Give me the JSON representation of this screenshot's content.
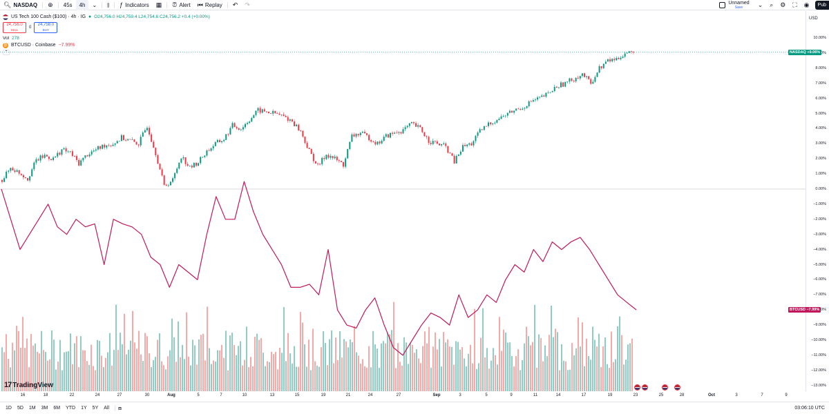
{
  "toolbar": {
    "symbol": "NASDAQ",
    "interval_1": "45s",
    "interval_2": "4h",
    "indicators": "Indicators",
    "alert": "Alert",
    "replay": "Replay",
    "layout_name": "Unnamed",
    "layout_save": "Save",
    "publish": "Pub"
  },
  "legend": {
    "title": "US Tech 100 Cash ($100) · 4h · IG",
    "ohlc": "O24,756.0 H24,759.4 L24,754.6 C24,756.2 +0.4 (+0.00%)",
    "sell_price": "24,756.0",
    "sell_label": "SELL",
    "spread": "0",
    "buy_price": "24,758.0",
    "buy_label": "BUY",
    "vol_label": "Vol",
    "vol_value": "278",
    "compare_symbol": "BTCUSD · Coinbase",
    "compare_change": "−7.99%"
  },
  "price_axis": {
    "currency": "USD",
    "ticks": [
      "10.00%",
      "9.00%",
      "8.00%",
      "7.00%",
      "6.00%",
      "5.00%",
      "4.00%",
      "3.00%",
      "2.00%",
      "1.00%",
      "0.00%",
      "−1.00%",
      "−2.00%",
      "−3.00%",
      "−4.00%",
      "−5.00%",
      "−6.00%",
      "−7.00%",
      "−8.00%",
      "−9.00%",
      "−10.00%",
      "−11.00%",
      "−12.00%",
      "−13.00%"
    ],
    "nasdaq_tag": "NASDAQ +9.06%",
    "btc_tag": "BTCUSD −7.99%"
  },
  "time_axis": [
    {
      "label": "16",
      "bold": false
    },
    {
      "label": "18",
      "bold": false
    },
    {
      "label": "22",
      "bold": false
    },
    {
      "label": "24",
      "bold": false
    },
    {
      "label": "27",
      "bold": false
    },
    {
      "label": "30",
      "bold": false
    },
    {
      "label": "Aug",
      "bold": true
    },
    {
      "label": "5",
      "bold": false
    },
    {
      "label": "7",
      "bold": false
    },
    {
      "label": "10",
      "bold": false
    },
    {
      "label": "13",
      "bold": false
    },
    {
      "label": "15",
      "bold": false
    },
    {
      "label": "19",
      "bold": false
    },
    {
      "label": "21",
      "bold": false
    },
    {
      "label": "24",
      "bold": false
    },
    {
      "label": "27",
      "bold": false
    },
    {
      "label": "Sep",
      "bold": true
    },
    {
      "label": "3",
      "bold": false
    },
    {
      "label": "5",
      "bold": false
    },
    {
      "label": "9",
      "bold": false
    },
    {
      "label": "11",
      "bold": false
    },
    {
      "label": "14",
      "bold": false
    },
    {
      "label": "17",
      "bold": false
    },
    {
      "label": "19",
      "bold": false
    },
    {
      "label": "23",
      "bold": false
    },
    {
      "label": "25",
      "bold": false
    },
    {
      "label": "28",
      "bold": false
    },
    {
      "label": "Oct",
      "bold": true
    },
    {
      "label": "3",
      "bold": false
    },
    {
      "label": "7",
      "bold": false
    },
    {
      "label": "9",
      "bold": false
    }
  ],
  "bottom": {
    "ranges": [
      "1D",
      "5D",
      "1M",
      "3M",
      "6M",
      "YTD",
      "1Y",
      "5Y",
      "All"
    ],
    "utc": "03:06:10 UTC"
  },
  "logo": "TradingView",
  "colors": {
    "up": "#089981",
    "down": "#f23645",
    "btc": "#c2185b",
    "vol_up": "#8fcdc4",
    "vol_down": "#f7a9a7"
  },
  "chart_data": {
    "type": "line",
    "series": [
      {
        "name": "NASDAQ",
        "y": [
          0.6,
          1.4,
          1.1,
          0.7,
          1.9,
          2.2,
          2.0,
          2.6,
          2.4,
          1.7,
          2.3,
          2.6,
          2.9,
          3.0,
          3.4,
          3.2,
          3.0,
          4.2,
          2.4,
          0.2,
          0.6,
          2.2,
          1.4,
          1.8,
          2.5,
          3.0,
          3.3,
          4.2,
          4.0,
          4.6,
          5.2,
          5.1,
          5.0,
          4.8,
          4.5,
          3.8,
          2.5,
          1.5,
          2.3,
          2.0,
          1.6,
          3.5,
          3.7,
          3.4,
          3.0,
          3.5,
          3.7,
          3.9,
          4.3,
          4.0,
          3.2,
          3.0,
          2.8,
          1.8,
          2.8,
          3.0,
          3.8,
          4.3,
          4.6,
          4.9,
          5.2,
          5.4,
          5.8,
          6.0,
          6.3,
          6.8,
          7.0,
          7.3,
          7.6,
          7.0,
          8.0,
          8.5,
          8.6,
          9.0,
          9.06
        ]
      },
      {
        "name": "BTCUSD",
        "y": [
          0,
          -2,
          -4,
          -3,
          -2,
          -1,
          -2.5,
          -3,
          -2,
          -2.5,
          -2.3,
          -5,
          -2,
          -2.3,
          -2.5,
          -3,
          -4.5,
          -5,
          -6.5,
          -5,
          -5.5,
          -6,
          -3,
          -0.5,
          -2,
          -2,
          0.5,
          -1.5,
          -3,
          -4,
          -5,
          -6.5,
          -6.5,
          -6.3,
          -7,
          -4,
          -8,
          -9,
          -9.2,
          -8,
          -7.2,
          -9,
          -10.5,
          -11,
          -10,
          -9,
          -8.2,
          -8.5,
          -9,
          -7,
          -8.5,
          -8,
          -7,
          -7.5,
          -6,
          -5,
          -5.5,
          -4,
          -4.8,
          -3.5,
          -4,
          -3.5,
          -3.2,
          -4,
          -5,
          -6,
          -7,
          -7.5,
          -7.99
        ]
      }
    ],
    "y_axis": {
      "min": -13.5,
      "max": 10.5,
      "unit": "%"
    }
  }
}
